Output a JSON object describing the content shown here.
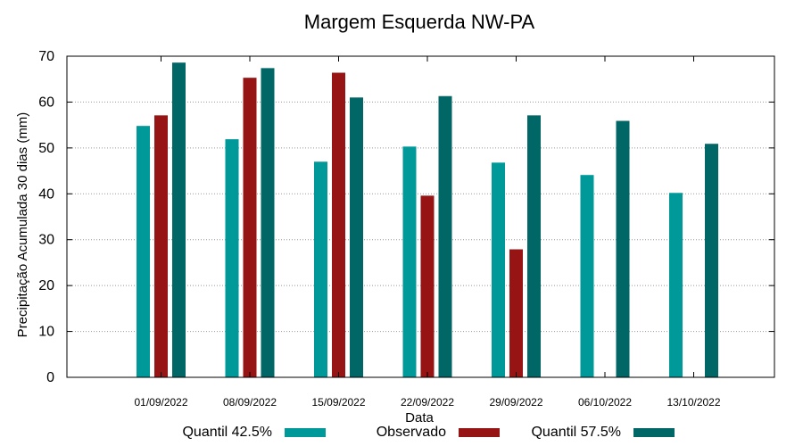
{
  "chart_data": {
    "type": "bar",
    "title": "Margem Esquerda NW-PA",
    "xlabel": "Data",
    "ylabel": "Precipitação Acumulada 30 dias (mm)",
    "ylim": [
      0,
      70
    ],
    "yticks": [
      0,
      10,
      20,
      30,
      40,
      50,
      60,
      70
    ],
    "grid": true,
    "legend_position": "bottom",
    "categories": [
      "01/09/2022",
      "08/09/2022",
      "15/09/2022",
      "22/09/2022",
      "29/09/2022",
      "06/10/2022",
      "13/10/2022"
    ],
    "series": [
      {
        "name": "Quantil 42.5%",
        "color": "#009999",
        "values": [
          54.8,
          51.9,
          47.0,
          50.3,
          46.8,
          44.1,
          40.2
        ]
      },
      {
        "name": "Observado",
        "color": "#961414",
        "values": [
          57.1,
          65.3,
          66.4,
          39.6,
          27.9,
          null,
          null
        ]
      },
      {
        "name": "Quantil 57.5%",
        "color": "#006666",
        "values": [
          68.6,
          67.4,
          61.0,
          61.3,
          57.1,
          55.9,
          50.9
        ]
      }
    ]
  }
}
